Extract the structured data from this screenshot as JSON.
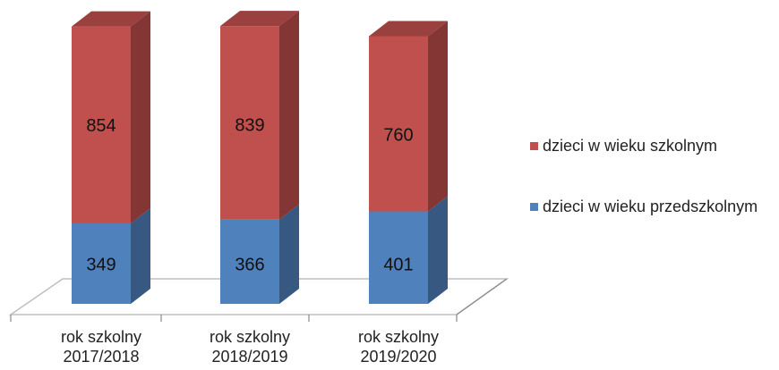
{
  "chart_data": {
    "type": "bar3d_stacked",
    "categories": [
      "rok szkolny 2017/2018",
      "rok szkolny 2018/2019",
      "rok szkolny 2019/2020"
    ],
    "series": [
      {
        "name": "dzieci w wieku przedszkolnym",
        "color": "#4f81bd",
        "values": [
          349,
          366,
          401
        ]
      },
      {
        "name": "dzieci w wieku szkolnym",
        "color": "#c0504d",
        "values": [
          854,
          839,
          760
        ]
      }
    ],
    "legend": "right"
  }
}
